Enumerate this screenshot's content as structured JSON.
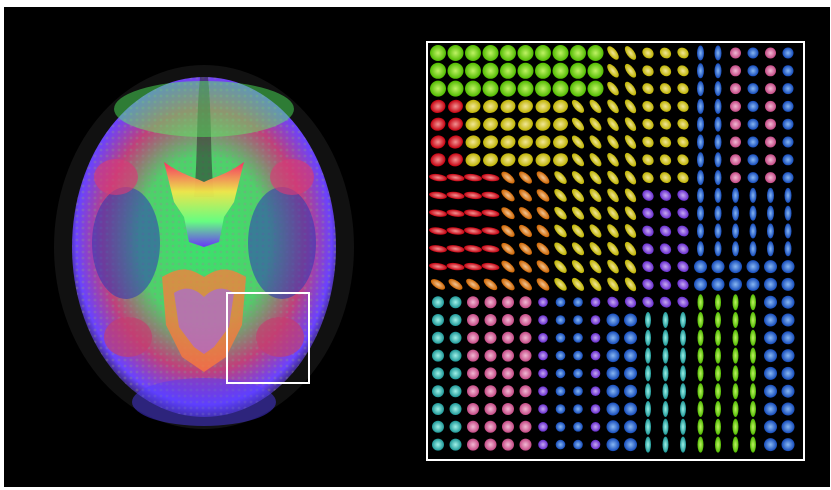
{
  "figure": {
    "background": "#000000",
    "frame_color": "#ffffff"
  },
  "brain_panel": {
    "description_icon": "brain-axial-slice-icon",
    "color_encoding": {
      "left-right": "#ff2a2a",
      "anterior-posterior": "#35ff35",
      "superior-inferior": "#3a4cff"
    }
  },
  "roi": {
    "icon": "region-of-interest-box-icon"
  },
  "zoom_panel": {
    "icon": "tensor-glyph-field-icon",
    "glyph_type": "ellipsoid"
  }
}
